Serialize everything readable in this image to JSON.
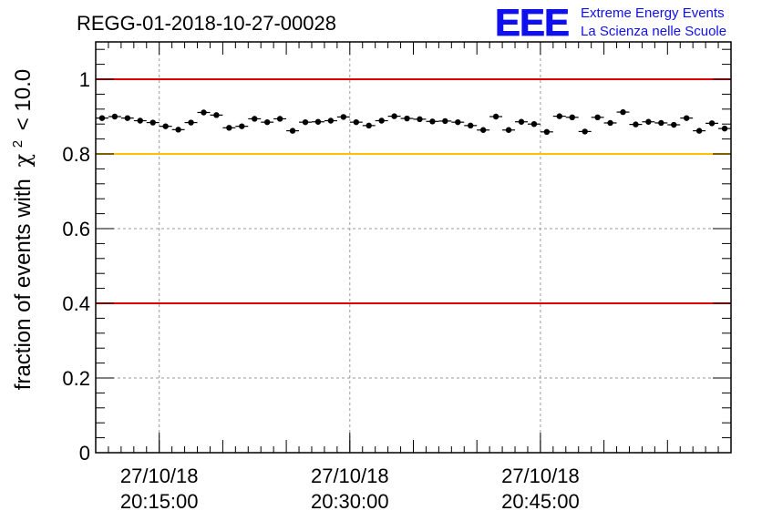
{
  "chart_data": {
    "type": "scatter",
    "title": "REGG-01-2018-10-27-00028",
    "ylabel": "fraction of events with",
    "ylabel_symbol": "χ",
    "ylabel_exponent": "2",
    "ylabel_suffix": "< 10.0",
    "ylim": [
      0,
      1.1
    ],
    "y_ticks": [
      {
        "value": 0,
        "label": "0"
      },
      {
        "value": 0.2,
        "label": "0.2"
      },
      {
        "value": 0.4,
        "label": "0.4"
      },
      {
        "value": 0.6,
        "label": "0.6"
      },
      {
        "value": 0.8,
        "label": "0.8"
      },
      {
        "value": 1,
        "label": "1"
      }
    ],
    "xlim_minutes": [
      0,
      50
    ],
    "x_ticks": [
      {
        "value": 5,
        "date": "27/10/18",
        "time": "20:15:00"
      },
      {
        "value": 20,
        "date": "27/10/18",
        "time": "20:30:00"
      },
      {
        "value": 35,
        "date": "27/10/18",
        "time": "20:45:00"
      }
    ],
    "grid": true,
    "reference_lines": [
      {
        "y": 1.0,
        "color": "#e00000"
      },
      {
        "y": 0.8,
        "color": "#ffc000"
      },
      {
        "y": 0.4,
        "color": "#e00000"
      }
    ],
    "series": [
      {
        "name": "fraction",
        "color": "#000000",
        "x": [
          0.5,
          1.5,
          2.5,
          3.5,
          4.5,
          5.5,
          6.5,
          7.5,
          8.5,
          9.5,
          10.5,
          11.5,
          12.5,
          13.5,
          14.5,
          15.5,
          16.5,
          17.5,
          18.5,
          19.5,
          20.5,
          21.5,
          22.5,
          23.5,
          24.5,
          25.5,
          26.5,
          27.5,
          28.5,
          29.5,
          30.5,
          31.5,
          32.5,
          33.5,
          34.5,
          35.5,
          36.5,
          37.5,
          38.5,
          39.5,
          40.5,
          41.5,
          42.5,
          43.5,
          44.5,
          45.5,
          46.5,
          47.5,
          48.5,
          49.5
        ],
        "y": [
          0.896,
          0.9,
          0.896,
          0.889,
          0.884,
          0.874,
          0.865,
          0.884,
          0.911,
          0.904,
          0.87,
          0.874,
          0.894,
          0.885,
          0.894,
          0.862,
          0.885,
          0.886,
          0.889,
          0.899,
          0.885,
          0.876,
          0.889,
          0.901,
          0.895,
          0.893,
          0.887,
          0.888,
          0.885,
          0.876,
          0.864,
          0.9,
          0.864,
          0.886,
          0.88,
          0.859,
          0.901,
          0.898,
          0.86,
          0.898,
          0.883,
          0.912,
          0.879,
          0.886,
          0.883,
          0.878,
          0.896,
          0.862,
          0.882,
          0.868
        ],
        "y_error": 0.006
      }
    ]
  },
  "logo": {
    "mark": "EEE",
    "line1": "Extreme Energy Events",
    "line2": "La Scienza nelle Scuole"
  }
}
